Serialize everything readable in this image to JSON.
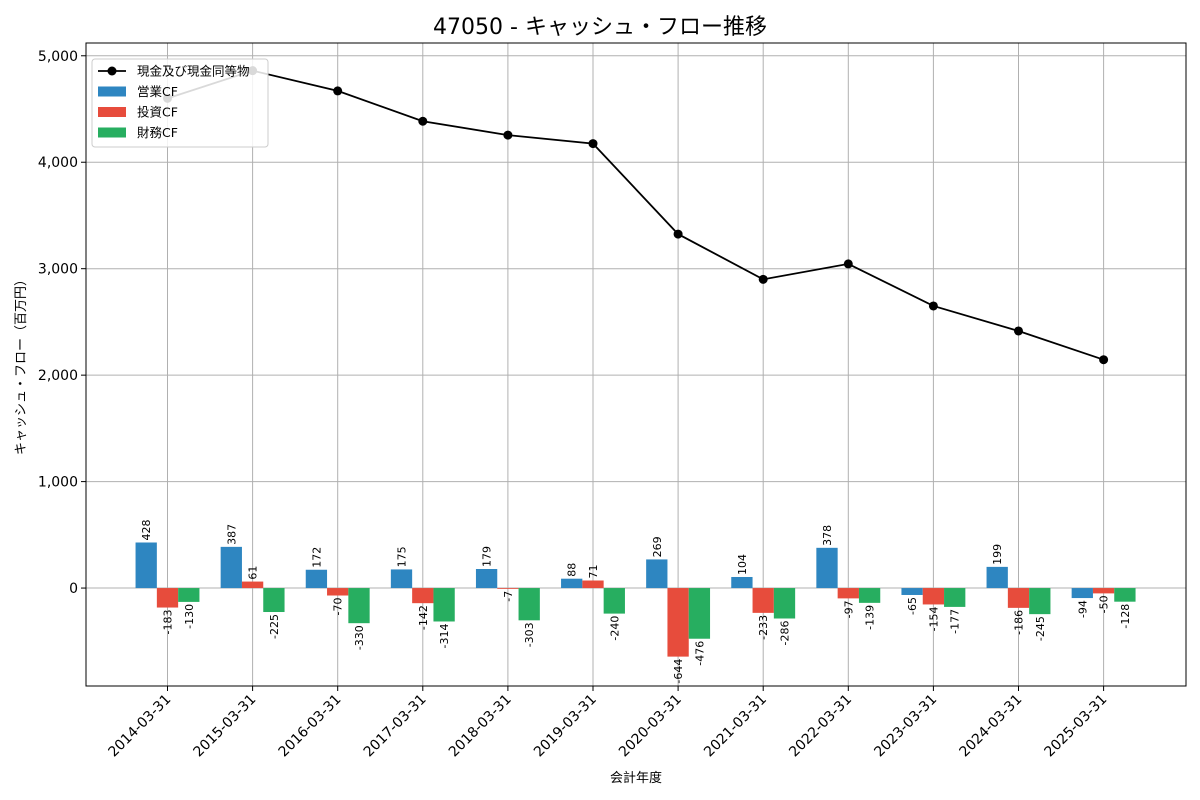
{
  "chart_data": {
    "type": "bar+line",
    "title": "47050 - キャッシュ・フロー推移",
    "xlabel": "会計年度",
    "ylabel": "キャッシュ・フロー（百万円）",
    "ylim": [
      -920,
      5120
    ],
    "yticks": [
      0,
      1000,
      2000,
      3000,
      4000,
      5000
    ],
    "ytick_labels": [
      "0",
      "1,000",
      "2,000",
      "3,000",
      "4,000",
      "5,000"
    ],
    "grid": true,
    "legend_position": "top-left",
    "categories": [
      "2014-03-31",
      "2015-03-31",
      "2016-03-31",
      "2017-03-31",
      "2018-03-31",
      "2019-03-31",
      "2020-03-31",
      "2021-03-31",
      "2022-03-31",
      "2023-03-31",
      "2024-03-31",
      "2025-03-31"
    ],
    "series": [
      {
        "name": "営業CF",
        "kind": "bar",
        "color": "#2e86c1",
        "values": [
          428,
          387,
          172,
          175,
          179,
          88,
          269,
          104,
          378,
          -65,
          199,
          -94
        ]
      },
      {
        "name": "投資CF",
        "kind": "bar",
        "color": "#e74c3c",
        "values": [
          -183,
          61,
          -70,
          -142,
          -7,
          71,
          -644,
          -233,
          -97,
          -154,
          -186,
          -50
        ]
      },
      {
        "name": "財務CF",
        "kind": "bar",
        "color": "#27ae60",
        "values": [
          -130,
          -225,
          -330,
          -314,
          -303,
          -240,
          -476,
          -286,
          -139,
          -177,
          -245,
          -128
        ]
      },
      {
        "name": "現金及び現金同等物",
        "kind": "line",
        "color": "#000000",
        "values": [
          4600,
          4860,
          4670,
          4385,
          4255,
          4175,
          3325,
          2900,
          3045,
          2650,
          2415,
          2145
        ]
      }
    ]
  }
}
